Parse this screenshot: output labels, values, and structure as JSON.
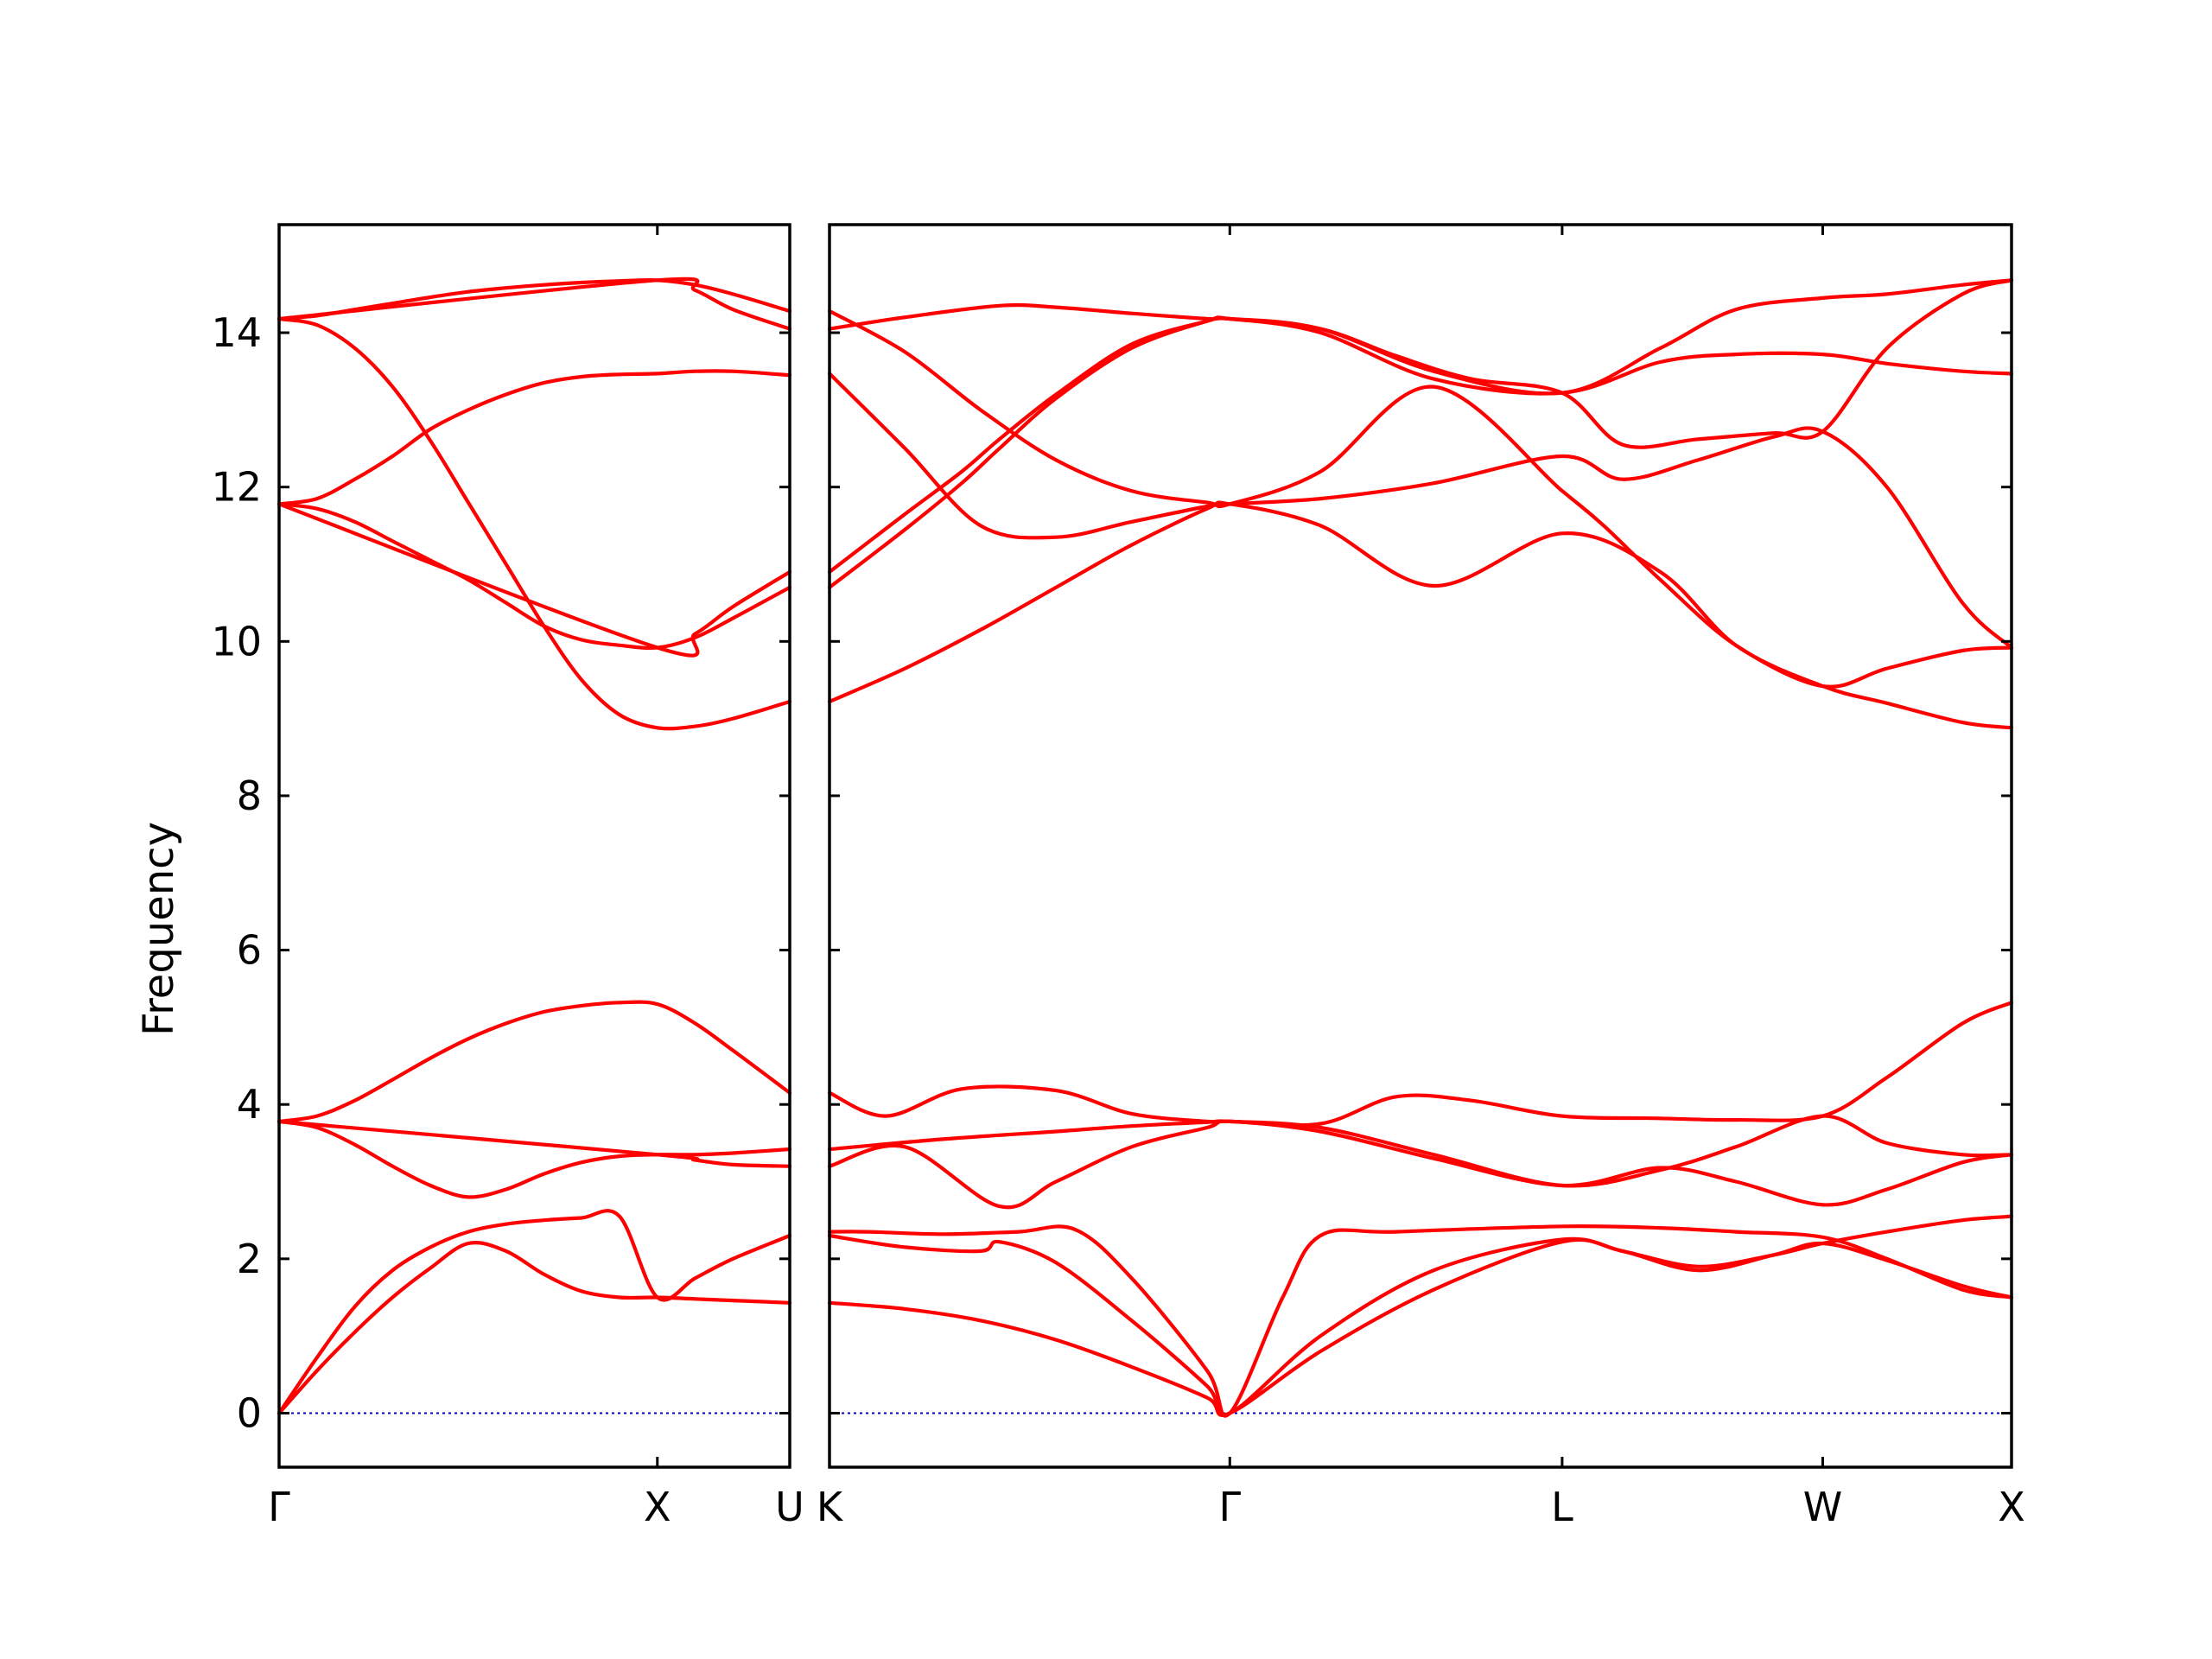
{
  "chart_data": {
    "type": "line",
    "title": "",
    "ylabel": "Frequency",
    "xlabel": "",
    "ylim": [
      -0.7,
      15.4
    ],
    "yticks": [
      0,
      2,
      4,
      6,
      8,
      10,
      12,
      14
    ],
    "grid": false,
    "legend": "none",
    "colors": {
      "bands": "#ff0000",
      "zero_line": "#0000cc",
      "axes": "#000000"
    },
    "panels": [
      {
        "name": "Γ-X-U",
        "x_range": [
          0,
          1.35
        ],
        "ticks": [
          {
            "x": 0,
            "label": "Γ"
          },
          {
            "x": 1.0,
            "label": "X"
          },
          {
            "x": 1.35,
            "label": "U"
          }
        ],
        "series": [
          {
            "x": [
              0,
              0.1,
              0.2,
              0.3,
              0.4,
              0.5,
              0.6,
              0.7,
              0.8,
              0.9,
              1.0,
              1.1,
              1.2,
              1.35
            ],
            "values": [
              0.0,
              0.55,
              1.05,
              1.5,
              1.88,
              2.2,
              2.1,
              1.8,
              1.58,
              1.5,
              1.5,
              1.48,
              1.46,
              1.43
            ]
          },
          {
            "x": [
              0,
              0.1,
              0.2,
              0.3,
              0.4,
              0.5,
              0.6,
              0.7,
              0.8,
              0.9,
              1.0,
              1.1,
              1.2,
              1.35
            ],
            "values": [
              0.0,
              0.72,
              1.38,
              1.85,
              2.15,
              2.35,
              2.45,
              2.5,
              2.53,
              2.55,
              1.5,
              1.75,
              2.0,
              2.3
            ]
          },
          {
            "x": [
              0,
              0.1,
              0.2,
              0.3,
              0.4,
              0.5,
              0.6,
              0.7,
              0.8,
              0.9,
              1.0,
              1.1,
              1.2,
              1.35
            ],
            "values": [
              3.78,
              3.7,
              3.48,
              3.2,
              2.95,
              2.8,
              2.9,
              3.1,
              3.25,
              3.33,
              3.35,
              3.35,
              3.37,
              3.42
            ]
          },
          {
            "x": [
              0,
              1.0,
              1.1,
              1.2,
              1.35
            ],
            "values": [
              3.78,
              3.35,
              3.28,
              3.22,
              3.2
            ]
          },
          {
            "x": [
              0,
              0.1,
              0.2,
              0.3,
              0.4,
              0.5,
              0.6,
              0.7,
              0.8,
              0.9,
              1.0,
              1.1,
              1.2,
              1.35
            ],
            "values": [
              3.78,
              3.85,
              4.05,
              4.32,
              4.6,
              4.85,
              5.05,
              5.2,
              5.28,
              5.32,
              5.3,
              5.05,
              4.7,
              4.15
            ]
          },
          {
            "x": [
              0,
              0.1,
              0.2,
              0.3,
              0.4,
              0.5,
              0.6,
              0.7,
              0.8,
              0.9,
              1.0,
              1.1,
              1.2,
              1.35
            ],
            "values": [
              14.18,
              14.1,
              13.8,
              13.3,
              12.6,
              11.8,
              11.0,
              10.2,
              9.5,
              9.05,
              8.88,
              8.9,
              9.0,
              9.22
            ]
          },
          {
            "x": [
              0,
              0.1,
              0.2,
              0.3,
              0.4,
              0.5,
              0.6,
              0.7,
              0.8,
              0.9,
              1.0,
              1.1,
              1.2,
              1.35
            ],
            "values": [
              11.78,
              11.72,
              11.55,
              11.3,
              11.05,
              10.8,
              10.5,
              10.2,
              10.02,
              9.95,
              9.92,
              10.05,
              10.3,
              10.7
            ]
          },
          {
            "x": [
              0,
              0.1,
              0.2,
              0.3,
              0.4,
              0.5,
              0.6,
              0.7,
              0.8,
              0.9,
              1.0,
              1.1,
              1.2,
              1.35
            ],
            "values": [
              11.78,
              11.85,
              12.1,
              12.4,
              12.75,
              13.0,
              13.2,
              13.35,
              13.43,
              13.46,
              13.47,
              13.5,
              13.5,
              13.45
            ]
          },
          {
            "x": [
              0,
              1.0,
              1.1,
              1.2,
              1.35
            ],
            "values": [
              11.78,
              9.92,
              10.1,
              10.45,
              10.9
            ]
          },
          {
            "x": [
              0,
              0.1,
              0.2,
              0.3,
              0.4,
              0.5,
              0.6,
              0.7,
              0.8,
              0.9,
              1.0,
              1.1,
              1.2,
              1.35
            ],
            "values": [
              14.18,
              14.22,
              14.3,
              14.38,
              14.46,
              14.53,
              14.58,
              14.62,
              14.65,
              14.67,
              14.68,
              14.62,
              14.5,
              14.28
            ]
          },
          {
            "x": [
              0,
              1.0,
              1.1,
              1.2,
              1.35
            ],
            "values": [
              14.18,
              14.68,
              14.55,
              14.3,
              14.05
            ]
          }
        ]
      },
      {
        "name": "K-Γ-L-W-X",
        "x_range": [
          0,
          3.13
        ],
        "ticks": [
          {
            "x": 0,
            "label": "K"
          },
          {
            "x": 1.06,
            "label": "Γ"
          },
          {
            "x": 1.94,
            "label": "L"
          },
          {
            "x": 2.63,
            "label": "W"
          },
          {
            "x": 3.13,
            "label": "X"
          }
        ],
        "series": [
          {
            "x": [
              0,
              0.2,
              0.4,
              0.6,
              0.8,
              1.0,
              1.06,
              1.3,
              1.6,
              1.94,
              2.1,
              2.3,
              2.5,
              2.63,
              2.8,
              3.0,
              3.13
            ],
            "values": [
              1.43,
              1.35,
              1.2,
              0.95,
              0.6,
              0.2,
              0.0,
              0.8,
              1.6,
              2.22,
              2.1,
              1.85,
              2.05,
              2.2,
              1.98,
              1.65,
              1.5
            ]
          },
          {
            "x": [
              0,
              0.2,
              0.4,
              0.45,
              0.6,
              0.8,
              1.0,
              1.06,
              1.3,
              1.6,
              1.94,
              2.1,
              2.3,
              2.5,
              2.63,
              2.8,
              3.0,
              3.13
            ],
            "values": [
              2.3,
              2.15,
              2.1,
              2.22,
              1.95,
              1.2,
              0.35,
              0.0,
              1.0,
              1.85,
              2.25,
              2.1,
              1.9,
              2.05,
              2.2,
              2.35,
              2.5,
              2.55
            ]
          },
          {
            "x": [
              0,
              0.1,
              0.3,
              0.5,
              0.65,
              0.8,
              1.0,
              1.06,
              1.2,
              1.3,
              1.5,
              1.94,
              2.2,
              2.4,
              2.63,
              2.8,
              3.0,
              3.13
            ],
            "values": [
              2.35,
              2.35,
              2.32,
              2.35,
              2.38,
              1.75,
              0.55,
              0.0,
              1.5,
              2.3,
              2.35,
              2.42,
              2.4,
              2.35,
              2.28,
              2.0,
              1.6,
              1.5
            ]
          },
          {
            "x": [
              0,
              0.2,
              0.45,
              0.6,
              0.8,
              1.0,
              1.06,
              1.3,
              1.6,
              1.94,
              2.2,
              2.4,
              2.63,
              2.8,
              3.0,
              3.13
            ],
            "values": [
              3.2,
              3.45,
              2.68,
              3.0,
              3.45,
              3.7,
              3.78,
              3.65,
              3.3,
              2.95,
              3.18,
              3.0,
              2.7,
              2.9,
              3.25,
              3.35
            ]
          },
          {
            "x": [
              0,
              0.3,
              0.6,
              0.8,
              1.0,
              1.06,
              1.3,
              1.6,
              1.94,
              2.2,
              2.4,
              2.63,
              2.8,
              3.0,
              3.13
            ],
            "values": [
              3.42,
              3.55,
              3.65,
              3.72,
              3.77,
              3.78,
              3.7,
              3.35,
              2.95,
              3.15,
              3.45,
              3.85,
              3.5,
              3.35,
              3.35
            ]
          },
          {
            "x": [
              0,
              0.15,
              0.35,
              0.6,
              0.8,
              1.0,
              1.06,
              1.3,
              1.5,
              1.7,
              1.94,
              2.2,
              2.4,
              2.63,
              2.8,
              3.0,
              3.13
            ],
            "values": [
              4.15,
              3.85,
              4.2,
              4.18,
              3.88,
              3.78,
              3.78,
              3.75,
              4.1,
              4.05,
              3.85,
              3.82,
              3.8,
              3.85,
              4.35,
              5.05,
              5.32
            ]
          },
          {
            "x": [
              0,
              0.2,
              0.4,
              0.6,
              0.8,
              1.0,
              1.06,
              1.3,
              1.6,
              1.94,
              2.2,
              2.4,
              2.63,
              2.8,
              3.0,
              3.13
            ],
            "values": [
              9.22,
              9.65,
              10.15,
              10.7,
              11.25,
              11.72,
              11.78,
              11.5,
              10.72,
              11.4,
              10.9,
              9.95,
              9.42,
              9.2,
              8.95,
              8.88
            ]
          },
          {
            "x": [
              0,
              0.2,
              0.35,
              0.45,
              0.6,
              0.8,
              1.0,
              1.06,
              1.3,
              1.6,
              1.94,
              2.2,
              2.4,
              2.63,
              2.8,
              3.0,
              3.13
            ],
            "values": [
              10.7,
              11.45,
              12.05,
              12.5,
              13.15,
              13.8,
              14.15,
              14.18,
              14.0,
              13.4,
              13.22,
              13.62,
              13.72,
              13.72,
              13.6,
              13.5,
              13.47
            ]
          },
          {
            "x": [
              0,
              0.2,
              0.35,
              0.45,
              0.6,
              0.8,
              1.0,
              1.06,
              1.3,
              1.6,
              1.94,
              2.2,
              2.4,
              2.63,
              2.8,
              3.0,
              3.13
            ],
            "values": [
              10.9,
              11.65,
              12.2,
              12.62,
              13.2,
              13.85,
              14.15,
              14.18,
              14.05,
              13.5,
              13.22,
              13.8,
              14.3,
              14.45,
              14.5,
              14.62,
              14.68
            ]
          },
          {
            "x": [
              0,
              0.2,
              0.4,
              0.6,
              0.8,
              1.0,
              1.06,
              1.3,
              1.6,
              1.94,
              2.1,
              2.3,
              2.5,
              2.63,
              2.8,
              3.0,
              3.13
            ],
            "values": [
              13.47,
              12.5,
              11.5,
              11.35,
              11.55,
              11.75,
              11.78,
              11.85,
              12.05,
              12.4,
              12.1,
              12.35,
              12.65,
              12.72,
              12.0,
              10.5,
              9.92
            ]
          },
          {
            "x": [
              0,
              0.2,
              0.45,
              0.6,
              0.8,
              1.0,
              1.06,
              1.3,
              1.5,
              1.7,
              1.94,
              2.1,
              2.3,
              2.5,
              2.63,
              2.8,
              3.0,
              3.13
            ],
            "values": [
              14.05,
              14.2,
              14.35,
              14.33,
              14.25,
              14.18,
              14.18,
              14.05,
              13.7,
              13.4,
              13.22,
              12.55,
              12.62,
              12.7,
              12.72,
              13.8,
              14.5,
              14.68
            ]
          },
          {
            "x": [
              0,
              0.2,
              0.4,
              0.6,
              0.8,
              1.0,
              1.06,
              1.3,
              1.6,
              1.94,
              2.05,
              2.2,
              2.4,
              2.63,
              2.8,
              3.0,
              3.13
            ],
            "values": [
              14.28,
              13.75,
              13.0,
              12.35,
              11.95,
              11.8,
              11.78,
              12.2,
              13.3,
              11.95,
              11.5,
              10.8,
              9.95,
              9.42,
              9.65,
              9.88,
              9.92
            ]
          }
        ]
      }
    ]
  }
}
